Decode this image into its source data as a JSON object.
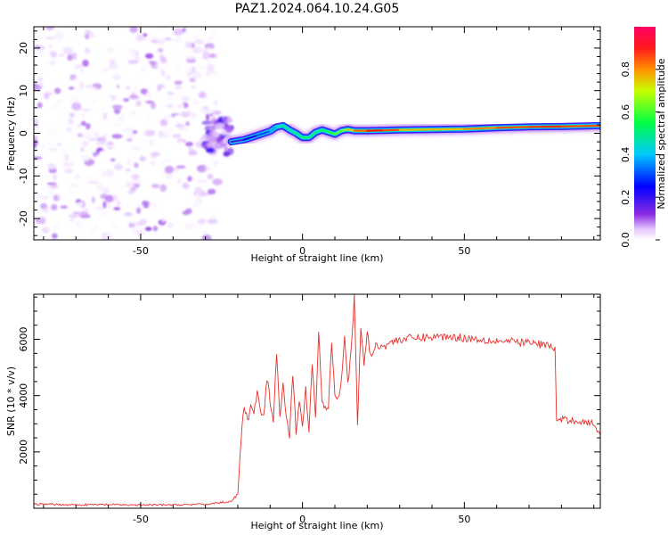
{
  "figure_title": "PAZ1.2024.064.10.24.G05",
  "chart_data": [
    {
      "type": "heatmap",
      "title": "PAZ1.2024.064.10.24.G05",
      "xlabel": "Height of straight line (km)",
      "ylabel": "Frequency (Hz)",
      "xlim": [
        -83,
        92
      ],
      "ylim": [
        -25,
        25
      ],
      "xticks": [
        -50,
        0,
        50
      ],
      "yticks": [
        -20,
        -10,
        0,
        10,
        20
      ],
      "colorbar": {
        "label": "Normalized spectral amplitude",
        "range": [
          0.0,
          1.0
        ],
        "ticks": [
          0.0,
          0.2,
          0.4,
          0.6,
          0.8
        ],
        "colormap": [
          "#ffffff",
          "#e6c8ff",
          "#8a2be2",
          "#0000ff",
          "#00c8ff",
          "#00ff66",
          "#c8ff00",
          "#ff8000",
          "#ff0000",
          "#ff0066"
        ]
      },
      "regions": [
        {
          "name": "noise",
          "x_range": [
            -83,
            -26
          ],
          "freq_range": [
            -25,
            25
          ],
          "amplitude_range": [
            0.0,
            0.2
          ]
        },
        {
          "name": "transition",
          "x_range": [
            -30,
            -22
          ],
          "freq_range": [
            -5,
            4
          ],
          "amplitude_range": [
            0.1,
            0.3
          ]
        }
      ],
      "ridge": {
        "x": [
          -22,
          -18,
          -14,
          -10,
          -8,
          -6,
          -4,
          -2,
          0,
          2,
          4,
          6,
          8,
          10,
          12,
          14,
          16,
          20,
          25,
          30,
          40,
          50,
          60,
          70,
          80,
          92
        ],
        "freq": [
          -2,
          -1.5,
          -0.5,
          0.5,
          1.5,
          1.8,
          0.8,
          0.0,
          -1,
          -1,
          0.2,
          0.8,
          0.3,
          -0.2,
          0.6,
          0.9,
          0.6,
          0.6,
          0.7,
          0.8,
          0.9,
          1.0,
          1.3,
          1.5,
          1.6,
          1.8
        ],
        "amplitude": [
          0.25,
          0.3,
          0.35,
          0.4,
          0.45,
          0.5,
          0.5,
          0.5,
          0.55,
          0.55,
          0.5,
          0.55,
          0.55,
          0.6,
          0.6,
          0.65,
          0.75,
          0.85,
          0.9,
          0.75,
          0.7,
          0.75,
          0.8,
          0.85,
          0.85,
          0.8
        ]
      }
    },
    {
      "type": "line",
      "xlabel": "Height of straight line (km)",
      "ylabel": "SNR (10 * v/v)",
      "xlim": [
        -83,
        92
      ],
      "ylim": [
        0,
        7600
      ],
      "xticks": [
        -50,
        0,
        50
      ],
      "yticks": [
        2000,
        4000,
        6000
      ],
      "color": "#e8302a",
      "series": [
        {
          "x": [
            -83,
            -70,
            -60,
            -50,
            -40,
            -30,
            -22,
            -20,
            -19,
            -18,
            -17,
            -16,
            -15,
            -14,
            -13,
            -12,
            -11,
            -10,
            -9,
            -8,
            -7,
            -6,
            -5,
            -4,
            -3,
            -2,
            -1,
            0,
            1,
            2,
            3,
            4,
            5,
            6,
            7,
            8,
            9,
            10,
            11,
            12,
            13,
            14,
            15,
            16,
            17,
            18,
            19,
            20,
            21,
            22,
            23,
            24,
            25,
            26,
            28,
            30,
            35,
            40,
            45,
            50,
            55,
            60,
            65,
            70,
            75,
            78,
            78.5,
            80,
            85,
            90,
            92
          ],
          "y": [
            150,
            120,
            130,
            110,
            120,
            140,
            250,
            500,
            2400,
            3700,
            3100,
            3600,
            3300,
            4200,
            3400,
            3200,
            4600,
            3800,
            3000,
            5600,
            3200,
            4400,
            3200,
            2500,
            4800,
            2700,
            3900,
            3000,
            4200,
            2800,
            5000,
            3300,
            6200,
            3900,
            3600,
            3500,
            6000,
            4000,
            3900,
            4600,
            6200,
            4400,
            5500,
            7500,
            3000,
            6400,
            5100,
            6300,
            5400,
            5600,
            5800,
            5800,
            5700,
            5850,
            5900,
            6000,
            6050,
            6080,
            6100,
            6050,
            6000,
            5950,
            5900,
            5880,
            5800,
            5700,
            3100,
            3150,
            3100,
            3000,
            2600
          ]
        }
      ]
    }
  ]
}
